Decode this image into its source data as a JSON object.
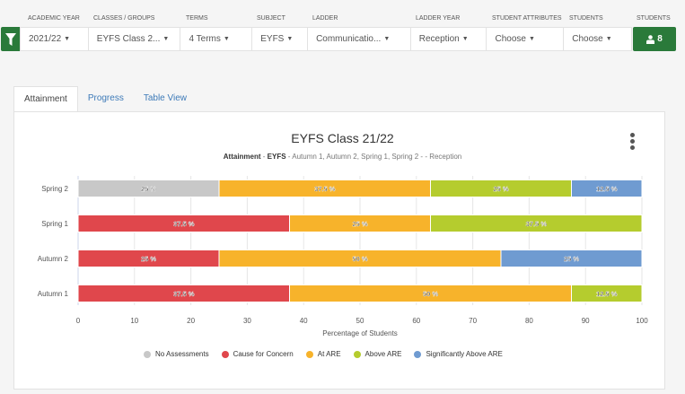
{
  "filters": {
    "labels": [
      "Academic Year",
      "Classes / Groups",
      "Terms",
      "Subject",
      "Ladder",
      "Ladder Year",
      "Student Attributes",
      "Students",
      "Students"
    ],
    "values": [
      "2021/22",
      "EYFS Class 2...",
      "4 Terms",
      "EYFS",
      "Communicatio...",
      "Reception",
      "Choose",
      "Choose"
    ],
    "student_count": "8"
  },
  "tabs": [
    "Attainment",
    "Progress",
    "Table View"
  ],
  "chart_data": {
    "type": "bar",
    "stacked": true,
    "orientation": "horizontal",
    "title": "EYFS Class 21/22",
    "subtitle_bold": "Attainment",
    "subtitle_subject": "EYFS",
    "subtitle_rest": " - Autumn 1, Autumn 2, Spring 1, Spring 2 - - Reception",
    "sep": " - ",
    "categories": [
      "Spring 2",
      "Spring 1",
      "Autumn 2",
      "Autumn 1"
    ],
    "series": [
      {
        "name": "No Assessments",
        "color": "#c8c8c8",
        "values": [
          25,
          0,
          0,
          0
        ]
      },
      {
        "name": "Cause for Concern",
        "color": "#e0474c",
        "values": [
          0,
          37.5,
          25,
          37.5
        ]
      },
      {
        "name": "At ARE",
        "color": "#f7b32b",
        "values": [
          37.5,
          25,
          50,
          50
        ]
      },
      {
        "name": "Above ARE",
        "color": "#b5cc2e",
        "values": [
          25,
          37.5,
          0,
          12.5
        ]
      },
      {
        "name": "Significantly Above ARE",
        "color": "#6f9bd1",
        "values": [
          12.5,
          0,
          25,
          0
        ]
      }
    ],
    "xlabel": "Percentage of Students",
    "xlim": [
      0,
      100
    ],
    "xticks": [
      0,
      10,
      20,
      30,
      40,
      50,
      60,
      70,
      80,
      90,
      100
    ],
    "legend": "bottom"
  }
}
